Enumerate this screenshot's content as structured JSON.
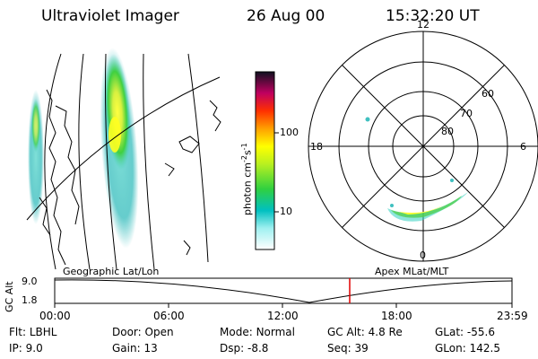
{
  "header": {
    "title": "Ultraviolet Imager",
    "date": "26 Aug 00",
    "time": "15:32:20 UT"
  },
  "colorbar": {
    "label": "photon cm",
    "label_exp1": "-2",
    "label_mid": "s",
    "label_exp2": "-1",
    "ticks": [
      "100",
      "10"
    ]
  },
  "polar": {
    "mlt_labels": {
      "top": "12",
      "left": "18",
      "right": "6",
      "bottom": "0"
    },
    "lat_labels": [
      "60",
      "70",
      "80"
    ]
  },
  "timeline": {
    "left_label": "Geographic Lat/Lon",
    "right_label": "Apex MLat/MLT",
    "axis_label": "GC Alt",
    "alt_ticks": [
      "9.0",
      "1.8"
    ],
    "time_ticks": [
      "00:00",
      "06:00",
      "12:00",
      "18:00",
      "23:59"
    ],
    "marker_color": "#e00000"
  },
  "info": {
    "row1": [
      {
        "label": "Flt:",
        "value": "LBHL"
      },
      {
        "label": "Door:",
        "value": "Open"
      },
      {
        "label": "Mode:",
        "value": "Normal"
      },
      {
        "label": "GC Alt:",
        "value": "4.8 Re"
      },
      {
        "label": "GLat:",
        "value": "-55.6"
      }
    ],
    "row2": [
      {
        "label": "IP:",
        "value": "9.0"
      },
      {
        "label": "Gain:",
        "value": "13"
      },
      {
        "label": "Dsp:",
        "value": "-8.8"
      },
      {
        "label": "Seq:",
        "value": "39"
      },
      {
        "label": "GLon:",
        "value": "142.5"
      }
    ]
  }
}
